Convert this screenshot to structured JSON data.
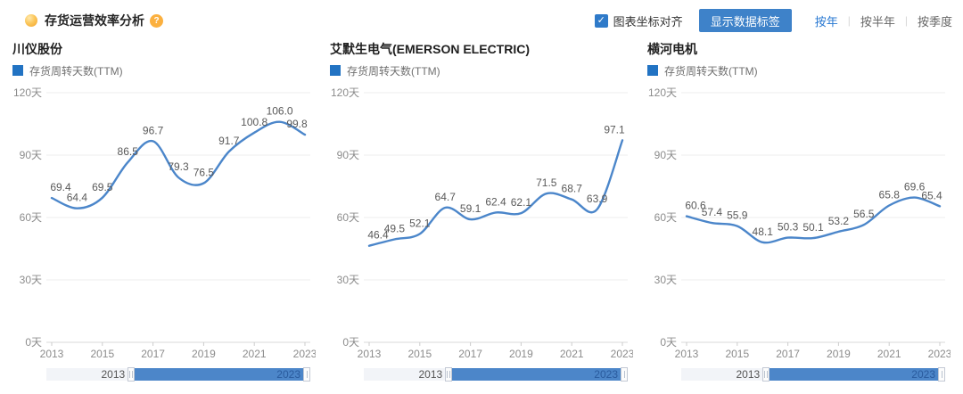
{
  "header": {
    "title": "存货运营效率分析",
    "help_icon_text": "?",
    "align_checkbox": {
      "label": "图表坐标对齐",
      "checked": true,
      "check_glyph": "✓"
    },
    "show_labels_button": "显示数据标签",
    "period_separator": "|",
    "periods": [
      {
        "label": "按年",
        "active": true
      },
      {
        "label": "按半年",
        "active": false
      },
      {
        "label": "按季度",
        "active": false
      }
    ]
  },
  "y_axis": {
    "tick_values": [
      0,
      30,
      60,
      90,
      120
    ],
    "tick_labels": [
      "0天",
      "30天",
      "60天",
      "90天",
      "120天"
    ],
    "max": 120
  },
  "x_axis": {
    "tick_labels": [
      "2013",
      "2015",
      "2017",
      "2019",
      "2021",
      "2023"
    ],
    "label_step": 2
  },
  "slider": {
    "start_label": "2013",
    "end_label": "2023",
    "selected_start_pct": 33.5,
    "selected_end_pct": 100
  },
  "colors": {
    "line_blue": "#4b86ca",
    "legend_blue": "#2273c3",
    "button_blue": "#3e82c9",
    "checkbox_blue": "#2f7ac9",
    "slider_blue": "#4c86c9",
    "active_link_blue": "#2878d2",
    "data_label_gray": "#595959",
    "axis_text_gray": "#8c8c8c",
    "grid_gray": "#ececec",
    "axis_line_gray": "#d9d9d9",
    "help_orange": "#fbb03f",
    "bullet_yellow": "#f6a62a"
  },
  "chart_data": [
    {
      "type": "line",
      "title": "川仪股份",
      "x": [
        2013,
        2014,
        2015,
        2016,
        2017,
        2018,
        2019,
        2020,
        2021,
        2022,
        2023
      ],
      "ylim": [
        0,
        120
      ],
      "ylabel_suffix": "天",
      "grid": true,
      "legend_position": "top-left",
      "series": [
        {
          "name": "存货周转天数(TTM)",
          "values": [
            69.4,
            64.4,
            69.5,
            86.5,
            96.7,
            79.3,
            76.5,
            91.7,
            100.8,
            106.0,
            99.8
          ]
        }
      ]
    },
    {
      "type": "line",
      "title": "艾默生电气(EMERSON ELECTRIC)",
      "x": [
        2013,
        2014,
        2015,
        2016,
        2017,
        2018,
        2019,
        2020,
        2021,
        2022,
        2023
      ],
      "ylim": [
        0,
        120
      ],
      "ylabel_suffix": "天",
      "grid": true,
      "legend_position": "top-left",
      "series": [
        {
          "name": "存货周转天数(TTM)",
          "values": [
            46.4,
            49.5,
            52.1,
            64.7,
            59.1,
            62.4,
            62.1,
            71.5,
            68.7,
            63.9,
            97.1
          ]
        }
      ]
    },
    {
      "type": "line",
      "title": "横河电机",
      "x": [
        2013,
        2014,
        2015,
        2016,
        2017,
        2018,
        2019,
        2020,
        2021,
        2022,
        2023
      ],
      "ylim": [
        0,
        120
      ],
      "ylabel_suffix": "天",
      "grid": true,
      "legend_position": "top-left",
      "series": [
        {
          "name": "存货周转天数(TTM)",
          "values": [
            60.6,
            57.4,
            55.9,
            48.1,
            50.3,
            50.1,
            53.2,
            56.5,
            65.8,
            69.6,
            65.4
          ]
        }
      ]
    }
  ]
}
